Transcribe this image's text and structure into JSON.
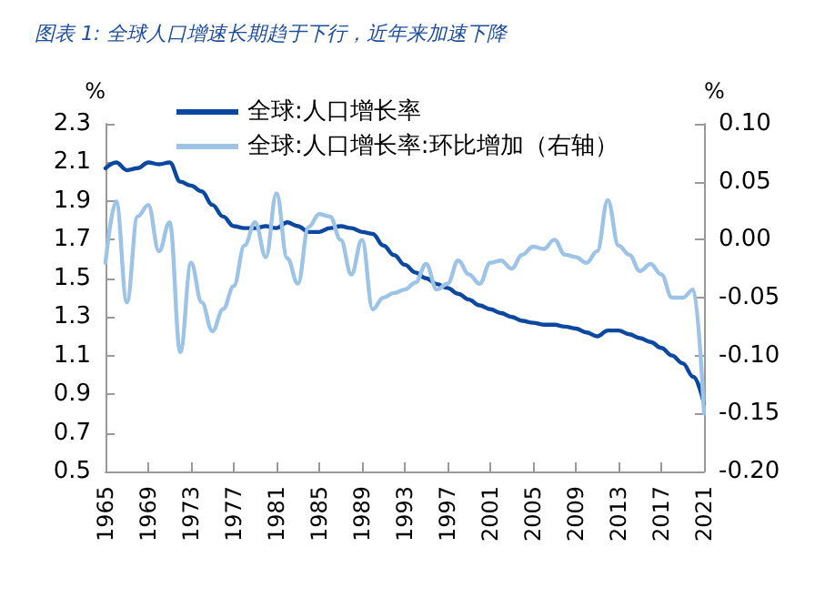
{
  "chart_data": {
    "type": "line",
    "title": "图表 1: 全球人口增速长期趋于下行，近年来加速下降",
    "ylabel": "%",
    "y2label": "%",
    "categories": [
      "1965",
      null,
      null,
      null,
      "1969",
      null,
      null,
      null,
      "1973",
      null,
      null,
      null,
      "1977",
      null,
      null,
      null,
      "1981",
      null,
      null,
      null,
      "1985",
      null,
      null,
      null,
      "1989",
      null,
      null,
      null,
      "1993",
      null,
      null,
      null,
      "1997",
      null,
      null,
      null,
      "2001",
      null,
      null,
      null,
      "2005",
      null,
      null,
      null,
      "2009",
      null,
      null,
      null,
      "2013",
      null,
      null,
      null,
      "2017",
      null,
      null,
      null,
      "2021"
    ],
    "series": [
      {
        "name": "全球:人口增长率",
        "color": "#0b48a0",
        "values": [
          2.07,
          2.1,
          2.06,
          2.07,
          2.1,
          2.09,
          2.1,
          2.0,
          1.98,
          1.95,
          1.88,
          1.82,
          1.77,
          1.76,
          1.76,
          1.77,
          1.76,
          1.79,
          1.77,
          1.74,
          1.74,
          1.76,
          1.77,
          1.76,
          1.74,
          1.73,
          1.67,
          1.62,
          1.57,
          1.53,
          1.5,
          1.47,
          1.45,
          1.42,
          1.39,
          1.36,
          1.34,
          1.32,
          1.3,
          1.28,
          1.27,
          1.26,
          1.26,
          1.25,
          1.24,
          1.22,
          1.2,
          1.23,
          1.23,
          1.21,
          1.19,
          1.17,
          1.14,
          1.1,
          1.06,
          0.99,
          0.85
        ]
      },
      {
        "name": "全球:人口增长率:环比增加（右轴）",
        "color": "#9dc3e6",
        "axis": "y2",
        "values": [
          -0.02,
          0.033,
          -0.054,
          0.02,
          0.03,
          -0.01,
          0.015,
          -0.097,
          -0.02,
          -0.054,
          -0.079,
          -0.06,
          -0.04,
          -0.005,
          0.015,
          -0.015,
          0.04,
          -0.016,
          -0.038,
          0.011,
          0.022,
          0.02,
          0,
          -0.03,
          0,
          -0.06,
          -0.05,
          -0.046,
          -0.043,
          -0.037,
          -0.021,
          -0.043,
          -0.038,
          -0.018,
          -0.03,
          -0.038,
          -0.02,
          -0.018,
          -0.025,
          -0.013,
          -0.006,
          -0.008,
          0,
          -0.013,
          -0.015,
          -0.02,
          -0.01,
          0.034,
          -0.005,
          -0.013,
          -0.027,
          -0.021,
          -0.03,
          -0.05,
          -0.05,
          -0.043,
          -0.15
        ]
      }
    ],
    "ylim": [
      0.5,
      2.3
    ],
    "yticks": [
      0.5,
      0.7,
      0.9,
      1.1,
      1.3,
      1.5,
      1.7,
      1.9,
      2.1,
      2.3
    ],
    "y2lim": [
      -0.2,
      0.1
    ],
    "y2ticks": [
      {
        "value": -0.2,
        "label": "-0.20"
      },
      {
        "value": -0.15,
        "label": "-0.15"
      },
      {
        "value": -0.1,
        "label": "-0.10"
      },
      {
        "value": -0.05,
        "label": "-0.05"
      },
      {
        "value": 0,
        "label": "0.00"
      },
      {
        "value": 0.05,
        "label": "0.05"
      },
      {
        "value": 0.1,
        "label": "0.10"
      }
    ],
    "legend": "top left",
    "grid": false,
    "marker": "none",
    "line_style": "solid"
  }
}
